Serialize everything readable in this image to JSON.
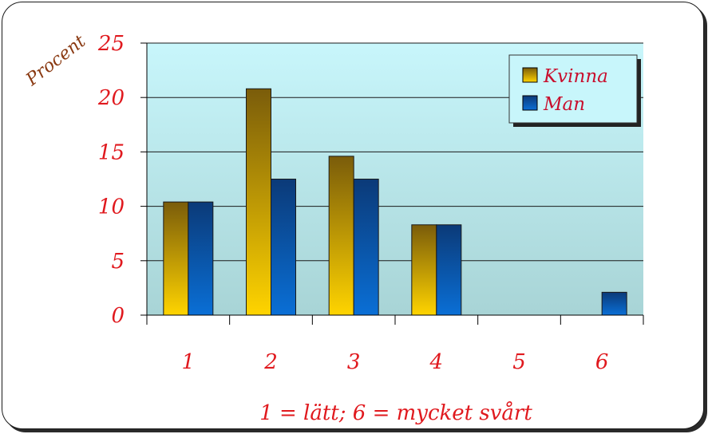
{
  "chart_data": {
    "type": "bar",
    "categories": [
      "1",
      "2",
      "3",
      "4",
      "5",
      "6"
    ],
    "series": [
      {
        "name": "Kvinna",
        "values": [
          10.4,
          20.8,
          14.6,
          8.3,
          0,
          0
        ]
      },
      {
        "name": "Man",
        "values": [
          10.4,
          12.5,
          12.5,
          8.3,
          0,
          2.1
        ]
      }
    ],
    "ylabel": "Procent",
    "xlabel": "1 = lätt; 6 = mycket svårt",
    "ylim": [
      0,
      25
    ],
    "yticks": [
      "0",
      "5",
      "10",
      "15",
      "20",
      "25"
    ],
    "grid": true,
    "legend_position": "top-right",
    "colors": {
      "kvinna_top": "#7a5c0a",
      "kvinna_bottom": "#ffd400",
      "man_top": "#0b3a78",
      "man_bottom": "#0a6fd6",
      "plot_top": "#c8f6fb",
      "plot_bottom": "#a8d6d8",
      "label": "#e0191e"
    }
  }
}
